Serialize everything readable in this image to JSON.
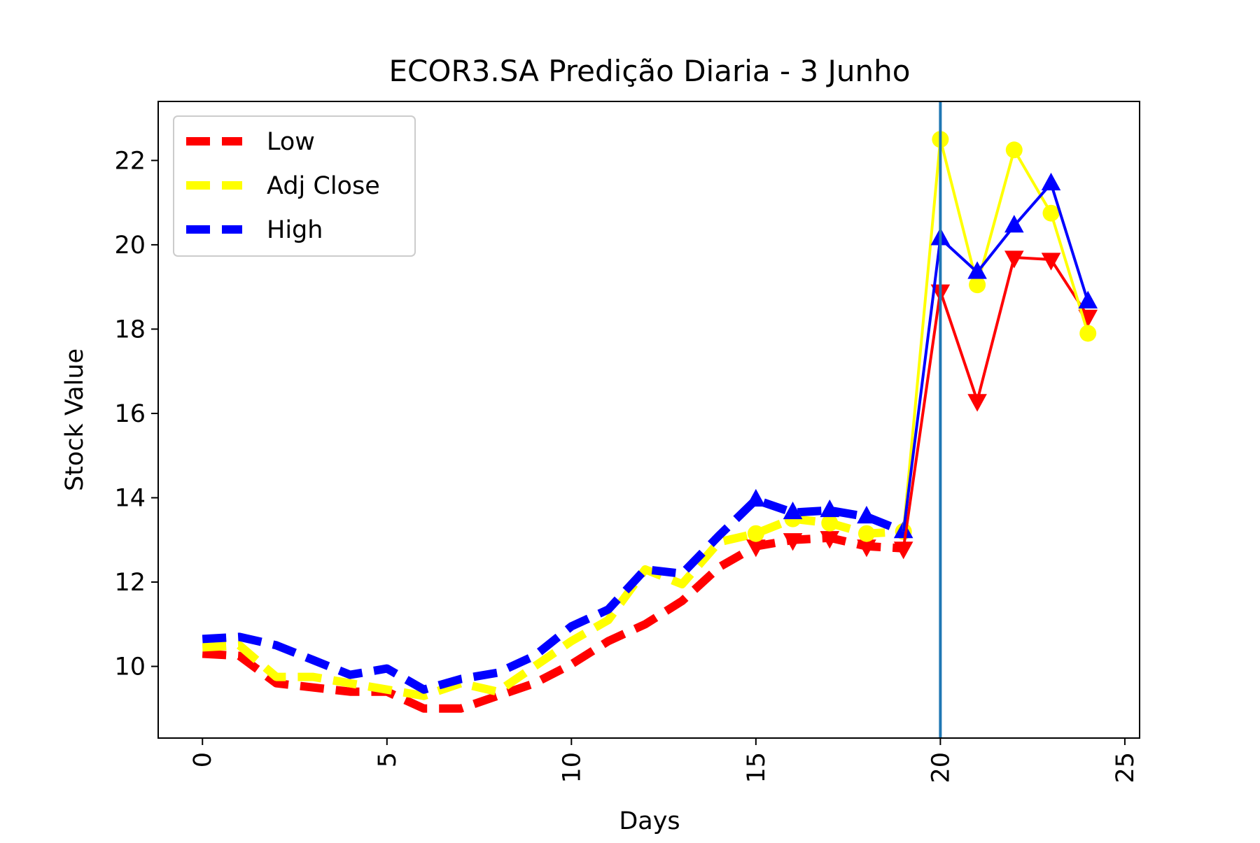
{
  "chart_data": {
    "type": "line",
    "title": "ECOR3.SA Predição Diaria - 3 Junho",
    "xlabel": "Days",
    "ylabel": "Stock Value",
    "xlim": [
      -1.2,
      25.4
    ],
    "ylim": [
      8.3,
      23.4
    ],
    "x_ticks": [
      0,
      5,
      10,
      15,
      20,
      25
    ],
    "y_ticks": [
      10,
      12,
      14,
      16,
      18,
      20,
      22
    ],
    "grid": false,
    "legend_position": "upper-left",
    "split_day": 20,
    "split_line_color": "#1f77b4",
    "series": [
      {
        "name": "Low",
        "color": "#ff0000",
        "marker": "triangle-down",
        "historical": {
          "x": [
            0,
            1,
            2,
            3,
            4,
            5,
            6,
            7,
            8,
            9,
            10,
            11,
            12,
            13,
            14,
            15,
            16,
            17,
            18,
            19
          ],
          "y": [
            10.3,
            10.25,
            9.6,
            9.5,
            9.4,
            9.4,
            9.0,
            9.0,
            9.3,
            9.6,
            10.05,
            10.6,
            11.0,
            11.55,
            12.35,
            12.85,
            13.0,
            13.05,
            12.85,
            12.8
          ]
        },
        "predicted": {
          "x": [
            19,
            20,
            21,
            22,
            23,
            24
          ],
          "y": [
            12.8,
            18.9,
            16.3,
            19.7,
            19.65,
            18.3
          ]
        }
      },
      {
        "name": "Adj Close",
        "color": "#ffff00",
        "marker": "circle",
        "historical": {
          "x": [
            0,
            1,
            2,
            3,
            4,
            5,
            6,
            7,
            8,
            9,
            10,
            11,
            12,
            13,
            14,
            15,
            16,
            17,
            18,
            19
          ],
          "y": [
            10.45,
            10.5,
            9.75,
            9.75,
            9.6,
            9.45,
            9.3,
            9.6,
            9.4,
            10.0,
            10.6,
            11.1,
            12.3,
            11.95,
            12.95,
            13.15,
            13.5,
            13.4,
            13.15,
            13.2
          ]
        },
        "predicted": {
          "x": [
            19,
            20,
            21,
            22,
            23,
            24
          ],
          "y": [
            13.2,
            22.5,
            19.05,
            22.25,
            20.75,
            17.9
          ]
        }
      },
      {
        "name": "High",
        "color": "#0000ff",
        "marker": "triangle-up",
        "historical": {
          "x": [
            0,
            1,
            2,
            3,
            4,
            5,
            6,
            7,
            8,
            9,
            10,
            11,
            12,
            13,
            14,
            15,
            16,
            17,
            18,
            19
          ],
          "y": [
            10.65,
            10.7,
            10.5,
            10.15,
            9.8,
            9.95,
            9.45,
            9.7,
            9.85,
            10.25,
            10.95,
            11.35,
            12.3,
            12.2,
            13.1,
            13.95,
            13.65,
            13.7,
            13.55,
            13.2
          ]
        },
        "predicted": {
          "x": [
            19,
            20,
            21,
            22,
            23,
            24
          ],
          "y": [
            13.2,
            20.15,
            19.35,
            20.45,
            21.45,
            18.65
          ]
        }
      }
    ]
  }
}
